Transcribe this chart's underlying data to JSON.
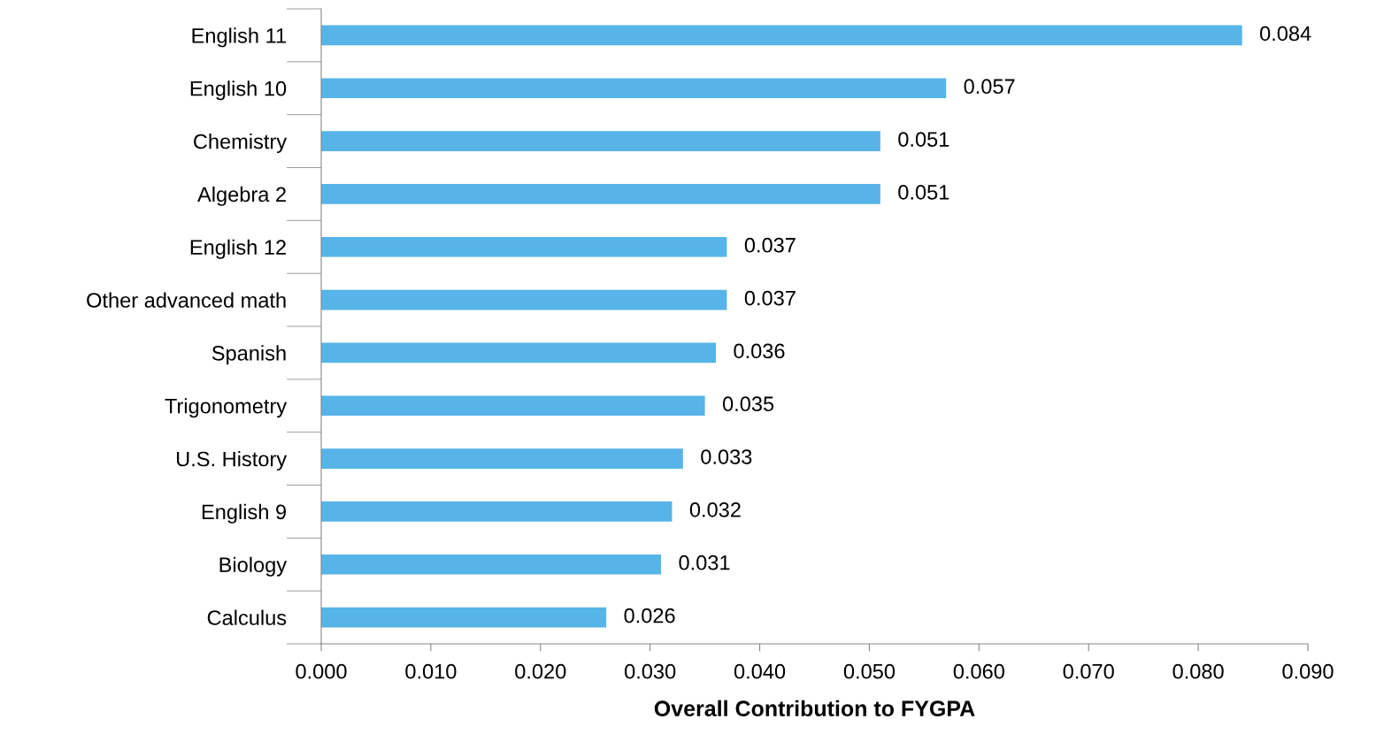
{
  "chart_data": {
    "type": "bar",
    "orientation": "horizontal",
    "xlabel": "Overall Contribution to FYGPA",
    "categories": [
      "English 11",
      "English 10",
      "Chemistry",
      "Algebra 2",
      "English 12",
      "Other advanced math",
      "Spanish",
      "Trigonometry",
      "U.S. History",
      "English 9",
      "Biology",
      "Calculus"
    ],
    "values": [
      0.084,
      0.057,
      0.051,
      0.051,
      0.037,
      0.037,
      0.036,
      0.035,
      0.033,
      0.032,
      0.031,
      0.026
    ],
    "color": "#56b4e8",
    "data_labels": true,
    "xlim": [
      0,
      0.09
    ],
    "xticks": [
      {
        "value": 0,
        "label": "0.000"
      },
      {
        "value": 0.01,
        "label": "0.010"
      },
      {
        "value": 0.02,
        "label": "0.020"
      },
      {
        "value": 0.03,
        "label": "0.030"
      },
      {
        "value": 0.04,
        "label": "0.040"
      },
      {
        "value": 0.05,
        "label": "0.050"
      },
      {
        "value": 0.06,
        "label": "0.060"
      },
      {
        "value": 0.07,
        "label": "0.070"
      },
      {
        "value": 0.08,
        "label": "0.080"
      },
      {
        "value": 0.09,
        "label": "0.090"
      }
    ],
    "grid": false
  }
}
